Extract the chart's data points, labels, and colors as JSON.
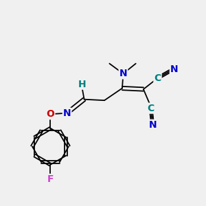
{
  "bg_color": "#f0f0f0",
  "atom_colors": {
    "C": "#008080",
    "N": "#0000cc",
    "O": "#cc0000",
    "F": "#cc44cc",
    "H": "#008080",
    "bond": "#000000"
  },
  "font_size_atom": 10,
  "fig_size": [
    3.0,
    3.0
  ],
  "dpi": 100,
  "bond_lw": 1.3,
  "triple_sep": 0.055,
  "double_sep": 0.08
}
